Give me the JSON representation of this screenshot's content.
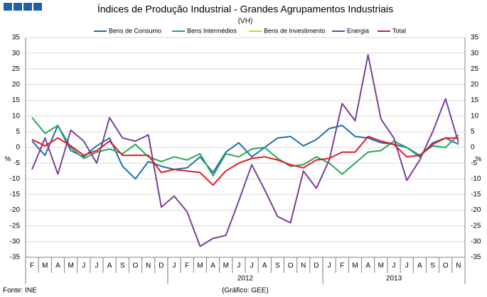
{
  "chart_data": {
    "type": "line",
    "title": "Índices de Produção Industrial - Grandes Agrupamentos Industriais",
    "subtitle": "(VH)",
    "y_label": "%",
    "y2_label": "%",
    "source": "Fonte: INE",
    "credit": "(Gráfico: GEE)",
    "categories": [
      "F",
      "M",
      "A",
      "M",
      "J",
      "J",
      "A",
      "S",
      "O",
      "N",
      "D",
      "J",
      "F",
      "M",
      "A",
      "M",
      "J",
      "J",
      "A",
      "S",
      "O",
      "N",
      "D",
      "J",
      "F",
      "M",
      "A",
      "M",
      "J",
      "J",
      "A",
      "S",
      "O",
      "N"
    ],
    "year_groups": [
      {
        "label": null,
        "count": 11
      },
      {
        "label": "2012",
        "count": 12
      },
      {
        "label": "2013",
        "count": 11
      }
    ],
    "ylim": [
      -35,
      35
    ],
    "yticks": [
      -35,
      -30,
      -25,
      -20,
      -15,
      -10,
      -5,
      0,
      5,
      10,
      15,
      20,
      25,
      30,
      35
    ],
    "y2lim": [
      -35,
      35
    ],
    "y2ticks": [
      -35,
      -30,
      -25,
      -20,
      -15,
      -10,
      -5,
      0,
      5,
      10,
      15,
      20,
      25,
      30,
      35
    ],
    "grid": true,
    "legend": "top",
    "series": [
      {
        "name": "Bens de Consumo",
        "color": "#1f6fb0",
        "values": [
          2,
          -2.5,
          7,
          -1,
          -3,
          0.5,
          3,
          -6,
          -10,
          -4.5,
          -6,
          -7,
          -6.5,
          -3,
          -8,
          -1.5,
          1.5,
          -3,
          0,
          3,
          3.5,
          0.5,
          2.5,
          6,
          7,
          3.5,
          3,
          1.5,
          1,
          0,
          -3,
          1.5,
          3,
          1
        ]
      },
      {
        "name": "Bens Intermédios",
        "color": "#2aa55a",
        "values": [
          9.5,
          4.5,
          7,
          0,
          -3.5,
          -1.5,
          -0.5,
          -2,
          1,
          -3,
          -4.5,
          -3,
          -4,
          -2,
          -9,
          -2,
          -3,
          -0.5,
          0,
          -3.5,
          -6,
          -5.5,
          -3,
          -5,
          -8.5,
          -5,
          -1.5,
          -1,
          2,
          0,
          -2.5,
          0.5,
          0,
          4
        ]
      },
      {
        "name": "Bens de Investimento",
        "color": "#e6d200",
        "values": [
          null,
          null,
          null,
          null,
          null,
          null,
          null,
          null,
          null,
          null,
          null,
          null,
          null,
          null,
          null,
          null,
          null,
          null,
          null,
          null,
          null,
          null,
          null,
          null,
          null,
          null,
          null,
          null,
          null,
          null,
          null,
          null,
          null,
          null
        ]
      },
      {
        "name": "Energia",
        "color": "#7b3f98",
        "values": [
          -7,
          3,
          -8.5,
          5.5,
          2,
          -5,
          9.5,
          3,
          2,
          4,
          -19,
          -15.5,
          -20.5,
          -31.5,
          -29,
          -28,
          -17,
          -5.5,
          -13.5,
          -22,
          -24,
          -7.5,
          -13,
          -4,
          14,
          8.5,
          29.5,
          9,
          3,
          -10.5,
          -4,
          5,
          15.5,
          1.5
        ]
      },
      {
        "name": "Total",
        "color": "#e01b22",
        "values": [
          2.5,
          0.5,
          3,
          0.5,
          -2.5,
          -1,
          2,
          -2.5,
          -2.5,
          -2.5,
          -8,
          -7,
          -7.5,
          -8,
          -12,
          -7.5,
          -5,
          -3.5,
          -3,
          -4,
          -5.5,
          -6.5,
          -4,
          -3.5,
          -1.5,
          -1.5,
          3.5,
          2,
          1,
          -3,
          -2.5,
          1,
          3,
          3
        ]
      }
    ]
  }
}
